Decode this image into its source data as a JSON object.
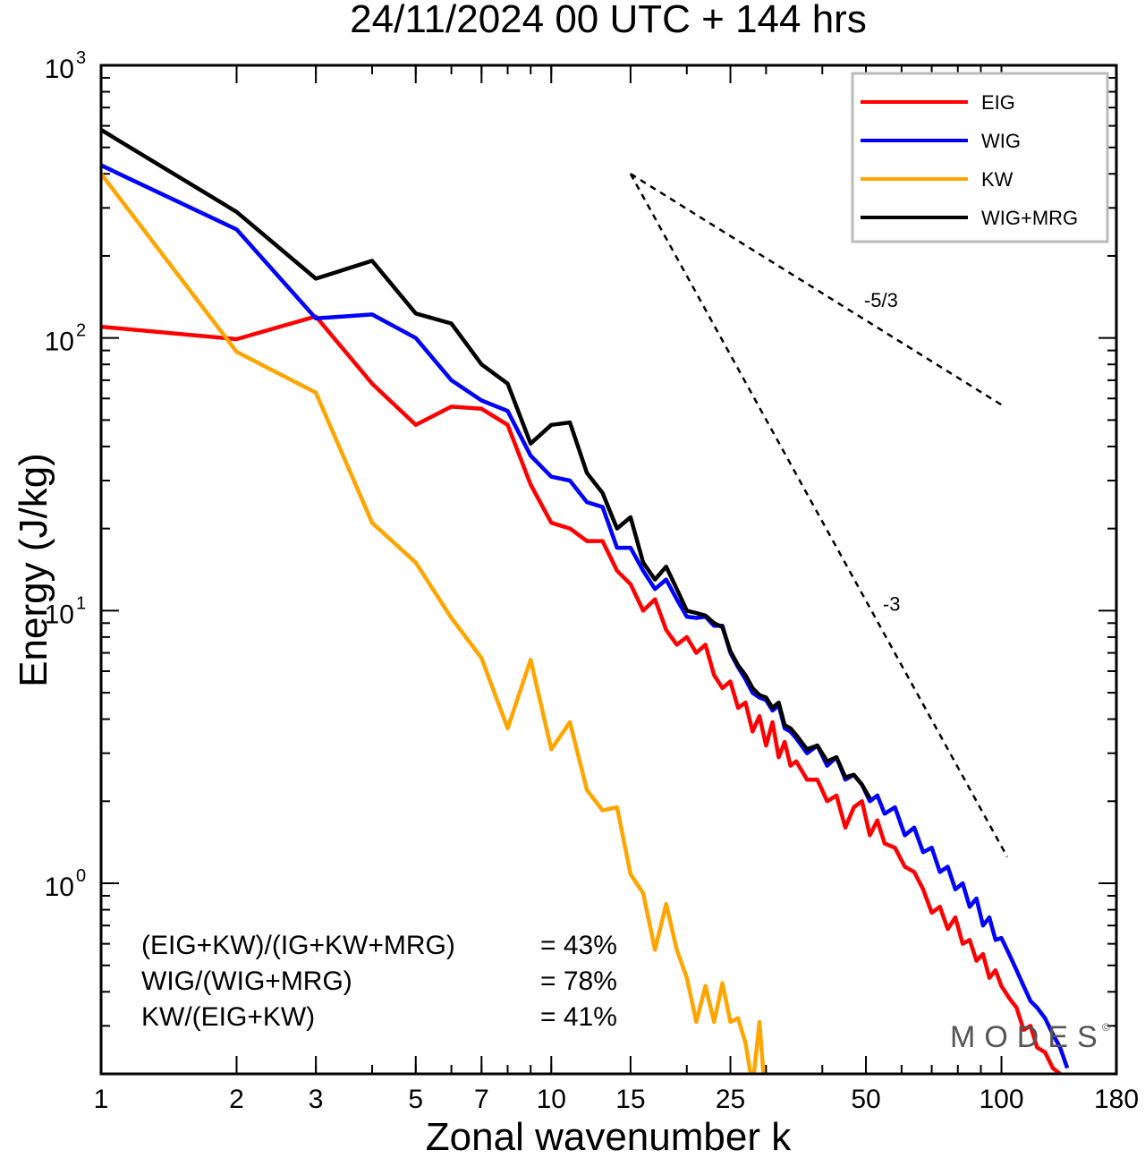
{
  "chart_data": {
    "type": "line",
    "title": "24/11/2024  00 UTC  + 144 hrs",
    "xlabel": "Zonal wavenumber k",
    "ylabel": "Energy (J/kg)",
    "xscale": "log",
    "yscale": "log",
    "xlim": [
      1,
      180
    ],
    "ylim": [
      0.2,
      1000
    ],
    "xticks": [
      {
        "value": 1,
        "label": "1"
      },
      {
        "value": 2,
        "label": "2"
      },
      {
        "value": 3,
        "label": "3"
      },
      {
        "value": 5,
        "label": "5"
      },
      {
        "value": 7,
        "label": "7"
      },
      {
        "value": 10,
        "label": "10"
      },
      {
        "value": 15,
        "label": "15"
      },
      {
        "value": 25,
        "label": "25"
      },
      {
        "value": 50,
        "label": "50"
      },
      {
        "value": 100,
        "label": "100"
      },
      {
        "value": 180,
        "label": "180"
      }
    ],
    "yticks": [
      {
        "value": 1,
        "base": "10",
        "exp": "0"
      },
      {
        "value": 10,
        "base": "10",
        "exp": "1"
      },
      {
        "value": 100,
        "base": "10",
        "exp": "2"
      },
      {
        "value": 1000,
        "base": "10",
        "exp": "3"
      }
    ],
    "legend_position": "top-right",
    "series": [
      {
        "name": "EIG",
        "color": "#ff0000",
        "points": [
          [
            1,
            110
          ],
          [
            2,
            99
          ],
          [
            3,
            120
          ],
          [
            4,
            68
          ],
          [
            5,
            48
          ],
          [
            6,
            56
          ],
          [
            7,
            55
          ],
          [
            8,
            48
          ],
          [
            9,
            29
          ],
          [
            10,
            21
          ],
          [
            11,
            20
          ],
          [
            12,
            18
          ],
          [
            13,
            18
          ],
          [
            14,
            14
          ],
          [
            15,
            12.5
          ],
          [
            16,
            10
          ],
          [
            17,
            11
          ],
          [
            18,
            8.5
          ],
          [
            19,
            7.5
          ],
          [
            20,
            8
          ],
          [
            21,
            7
          ],
          [
            22,
            7.5
          ],
          [
            23,
            5.8
          ],
          [
            24,
            5.2
          ],
          [
            25,
            5.5
          ],
          [
            26,
            4.4
          ],
          [
            27,
            4.6
          ],
          [
            28,
            3.6
          ],
          [
            29,
            4.1
          ],
          [
            30,
            3.2
          ],
          [
            31,
            3.9
          ],
          [
            32,
            2.9
          ],
          [
            33,
            3.3
          ],
          [
            34,
            2.7
          ],
          [
            35,
            2.8
          ],
          [
            37,
            2.4
          ],
          [
            39,
            2.4
          ],
          [
            41,
            2.0
          ],
          [
            43,
            2.1
          ],
          [
            45,
            1.6
          ],
          [
            47,
            1.9
          ],
          [
            49,
            2.0
          ],
          [
            51,
            1.5
          ],
          [
            53,
            1.7
          ],
          [
            55,
            1.4
          ],
          [
            58,
            1.35
          ],
          [
            61,
            1.15
          ],
          [
            64,
            1.1
          ],
          [
            67,
            0.95
          ],
          [
            70,
            0.78
          ],
          [
            73,
            0.82
          ],
          [
            76,
            0.68
          ],
          [
            79,
            0.75
          ],
          [
            82,
            0.6
          ],
          [
            85,
            0.62
          ],
          [
            88,
            0.52
          ],
          [
            91,
            0.55
          ],
          [
            94,
            0.45
          ],
          [
            97,
            0.48
          ],
          [
            100,
            0.42
          ],
          [
            104,
            0.38
          ],
          [
            108,
            0.35
          ],
          [
            112,
            0.29
          ],
          [
            116,
            0.3
          ],
          [
            120,
            0.25
          ],
          [
            125,
            0.24
          ],
          [
            130,
            0.21
          ],
          [
            135,
            0.2
          ]
        ]
      },
      {
        "name": "WIG",
        "color": "#0000ff",
        "points": [
          [
            1,
            430
          ],
          [
            2,
            250
          ],
          [
            3,
            118
          ],
          [
            4,
            122
          ],
          [
            5,
            100
          ],
          [
            6,
            70
          ],
          [
            7,
            59
          ],
          [
            8,
            54
          ],
          [
            9,
            37
          ],
          [
            10,
            31
          ],
          [
            11,
            30
          ],
          [
            12,
            25
          ],
          [
            13,
            24
          ],
          [
            14,
            17
          ],
          [
            15,
            17
          ],
          [
            16,
            14
          ],
          [
            17,
            12
          ],
          [
            18,
            13
          ],
          [
            19,
            11
          ],
          [
            20,
            9.5
          ],
          [
            21,
            9.4
          ],
          [
            22,
            9.5
          ],
          [
            23,
            8.8
          ],
          [
            24,
            8.8
          ],
          [
            25,
            7.0
          ],
          [
            26,
            6.2
          ],
          [
            27,
            5.6
          ],
          [
            28,
            5.0
          ],
          [
            29,
            4.8
          ],
          [
            30,
            4.7
          ],
          [
            31,
            4.3
          ],
          [
            32,
            4.5
          ],
          [
            33,
            3.7
          ],
          [
            34,
            3.6
          ],
          [
            35,
            3.4
          ],
          [
            37,
            3.0
          ],
          [
            39,
            3.2
          ],
          [
            41,
            2.7
          ],
          [
            43,
            2.9
          ],
          [
            45,
            2.4
          ],
          [
            47,
            2.5
          ],
          [
            49,
            2.3
          ],
          [
            51,
            2.0
          ],
          [
            53,
            2.1
          ],
          [
            55,
            1.8
          ],
          [
            58,
            1.9
          ],
          [
            61,
            1.5
          ],
          [
            64,
            1.6
          ],
          [
            67,
            1.3
          ],
          [
            70,
            1.35
          ],
          [
            73,
            1.1
          ],
          [
            76,
            1.15
          ],
          [
            79,
            0.95
          ],
          [
            82,
            1.0
          ],
          [
            85,
            0.82
          ],
          [
            88,
            0.88
          ],
          [
            91,
            0.7
          ],
          [
            94,
            0.75
          ],
          [
            97,
            0.62
          ],
          [
            100,
            0.63
          ],
          [
            104,
            0.55
          ],
          [
            108,
            0.48
          ],
          [
            112,
            0.42
          ],
          [
            116,
            0.37
          ],
          [
            120,
            0.35
          ],
          [
            125,
            0.32
          ],
          [
            130,
            0.28
          ],
          [
            135,
            0.25
          ],
          [
            140,
            0.21
          ]
        ]
      },
      {
        "name": "KW",
        "color": "#ffa500",
        "points": [
          [
            1,
            400
          ],
          [
            2,
            89
          ],
          [
            3,
            63
          ],
          [
            4,
            21
          ],
          [
            5,
            15
          ],
          [
            6,
            9.4
          ],
          [
            7,
            6.7
          ],
          [
            8,
            3.7
          ],
          [
            9,
            6.6
          ],
          [
            10,
            3.1
          ],
          [
            11,
            3.9
          ],
          [
            12,
            2.2
          ],
          [
            13,
            1.85
          ],
          [
            14,
            1.9
          ],
          [
            15,
            1.08
          ],
          [
            16,
            0.92
          ],
          [
            17,
            0.57
          ],
          [
            18,
            0.84
          ],
          [
            19,
            0.57
          ],
          [
            20,
            0.45
          ],
          [
            21,
            0.31
          ],
          [
            22,
            0.42
          ],
          [
            23,
            0.31
          ],
          [
            24,
            0.43
          ],
          [
            25,
            0.31
          ],
          [
            26,
            0.32
          ],
          [
            27,
            0.26
          ],
          [
            28,
            0.18
          ],
          [
            29,
            0.31
          ],
          [
            30,
            0.15
          ],
          [
            31,
            0.2
          ]
        ]
      },
      {
        "name": "WIG+MRG",
        "color": "#000000",
        "points": [
          [
            1,
            580
          ],
          [
            2,
            290
          ],
          [
            3,
            165
          ],
          [
            4,
            192
          ],
          [
            5,
            123
          ],
          [
            6,
            113
          ],
          [
            7,
            80
          ],
          [
            8,
            68
          ],
          [
            9,
            41
          ],
          [
            10,
            48
          ],
          [
            11,
            49
          ],
          [
            12,
            32
          ],
          [
            13,
            27
          ],
          [
            14,
            20
          ],
          [
            15,
            22
          ],
          [
            16,
            15
          ],
          [
            17,
            13
          ],
          [
            18,
            14.5
          ],
          [
            19,
            12
          ],
          [
            20,
            10
          ],
          [
            21,
            9.8
          ],
          [
            22,
            9.6
          ],
          [
            23,
            9
          ],
          [
            24,
            8.7
          ],
          [
            25,
            7.1
          ],
          [
            26,
            6.3
          ],
          [
            27,
            5.8
          ],
          [
            28,
            5.2
          ],
          [
            29,
            4.9
          ],
          [
            30,
            4.8
          ],
          [
            31,
            4.4
          ],
          [
            32,
            4.6
          ],
          [
            33,
            3.8
          ],
          [
            34,
            3.7
          ],
          [
            35,
            3.5
          ],
          [
            37,
            3.1
          ],
          [
            39,
            3.2
          ],
          [
            41,
            2.8
          ],
          [
            43,
            2.9
          ],
          [
            45,
            2.45
          ],
          [
            47,
            2.5
          ],
          [
            49,
            2.3
          ],
          [
            51,
            2.05
          ]
        ]
      }
    ],
    "reference_lines": [
      {
        "label": "-5/3",
        "points": [
          [
            15,
            400
          ],
          [
            101,
            56.3
          ]
        ],
        "label_at": [
          54,
          130
        ]
      },
      {
        "label": "-3",
        "points": [
          [
            15,
            400
          ],
          [
            103,
            1.25
          ]
        ],
        "label_at": [
          57,
          10
        ]
      }
    ],
    "stats": [
      {
        "label": "(EIG+KW)/(IG+KW+MRG)",
        "value": "= 43%"
      },
      {
        "label": "WIG/(WIG+MRG)",
        "value": "= 78%"
      },
      {
        "label": "KW/(EIG+KW)",
        "value": "= 41%"
      }
    ],
    "brand": "MODES",
    "brand_mark": "©"
  }
}
